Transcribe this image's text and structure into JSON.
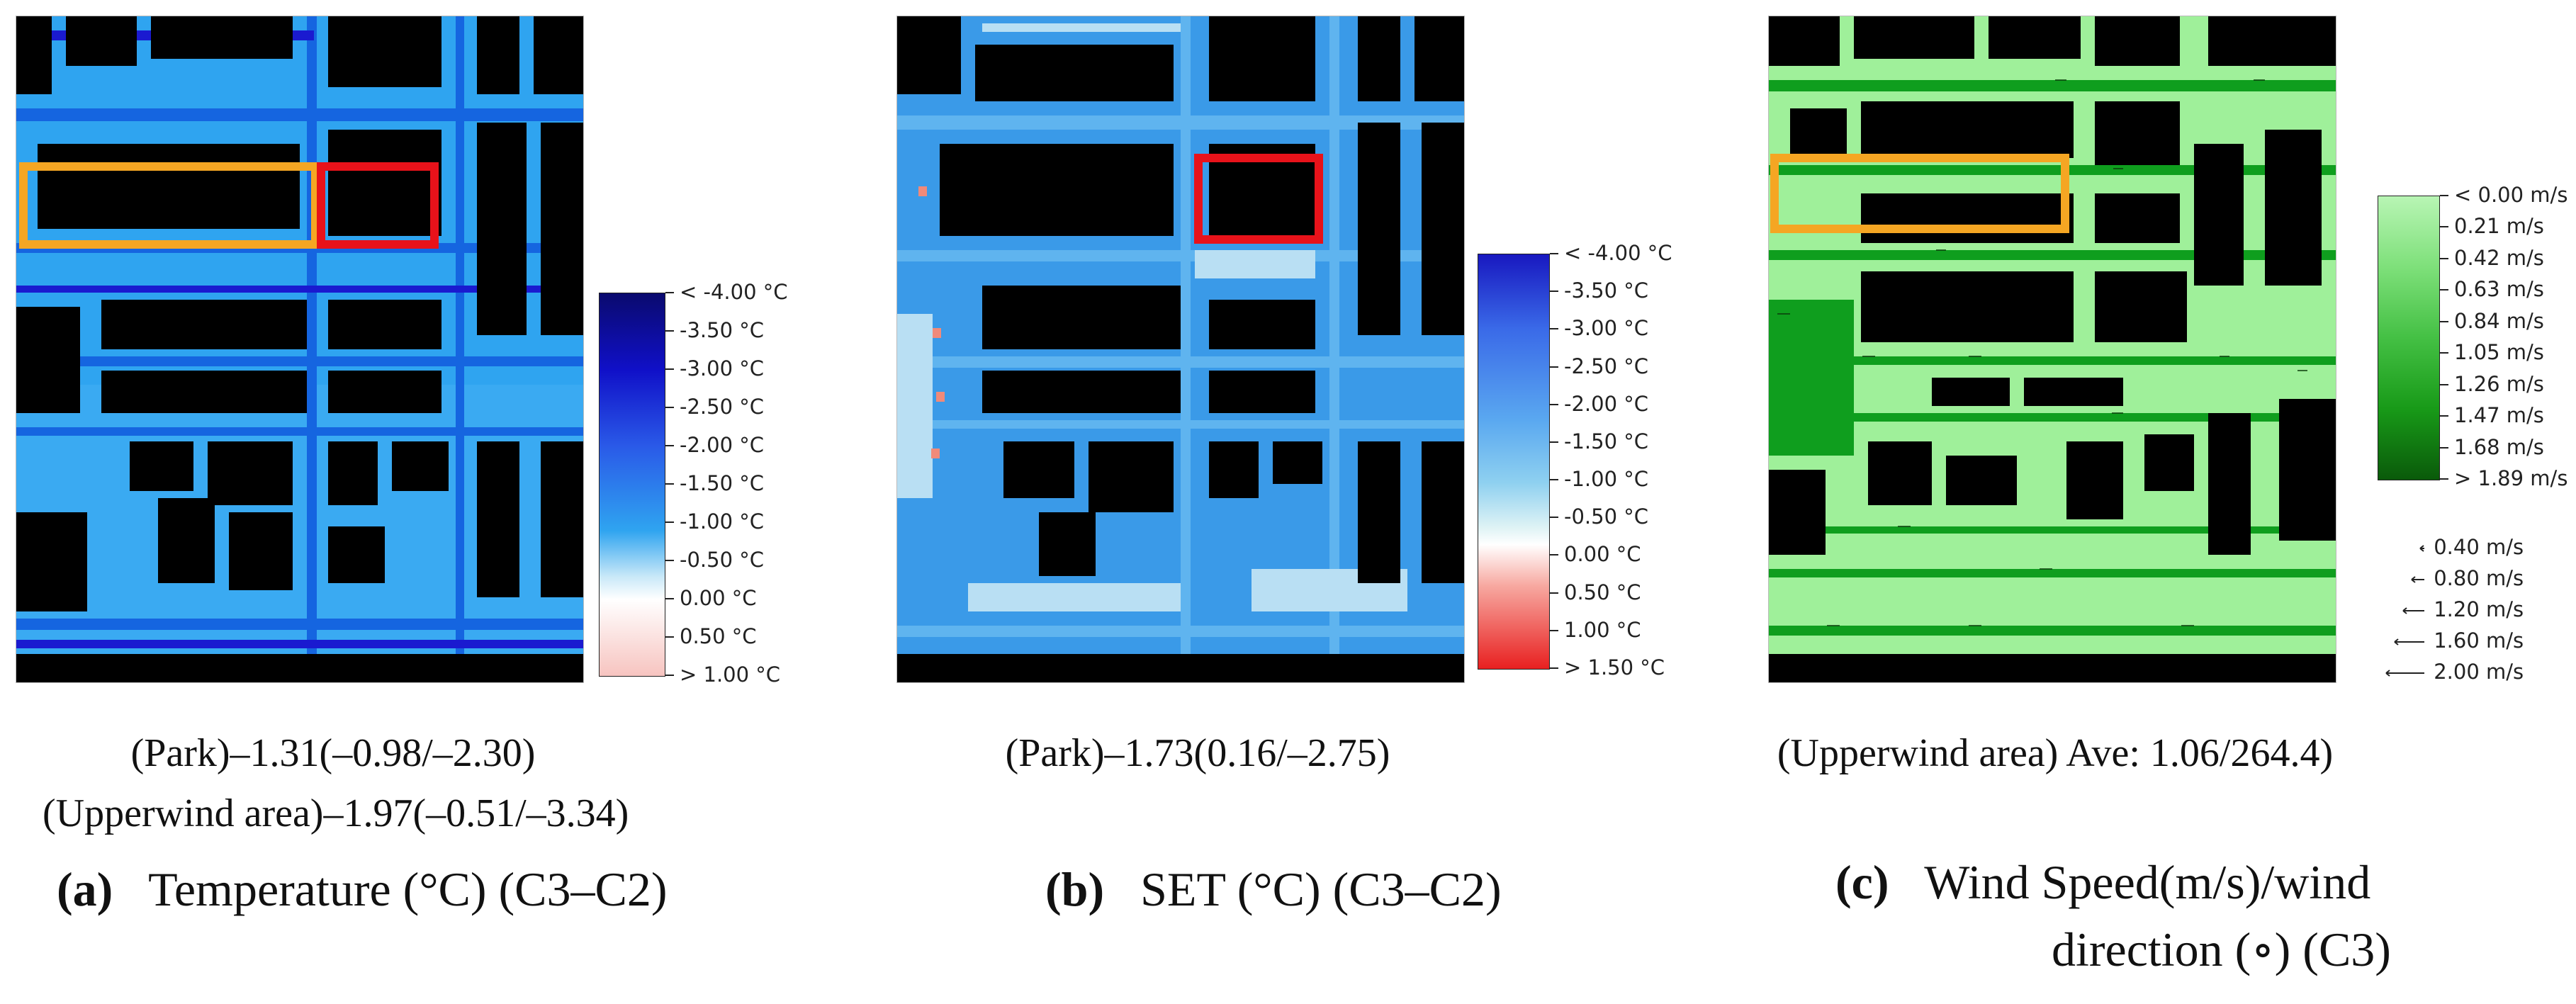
{
  "panels": [
    {
      "id": "a",
      "letter": "(a)",
      "title_text": "Temperature (°C) (C3–C2)",
      "caption_lines": [
        "(Park)–1.31(–0.98/–2.30)",
        "(Upperwind area)–1.97(–0.51/–3.34)"
      ],
      "legend": [
        "< -4.00 °C",
        "-3.50 °C",
        "-3.00 °C",
        "-2.50 °C",
        "-2.00 °C",
        "-1.50 °C",
        "-1.00 °C",
        "-0.50 °C",
        "0.00 °C",
        "0.50 °C",
        "> 1.00 °C"
      ],
      "colors": {
        "background": "#2fa4f0",
        "street": "#1565e0",
        "cool_street": "#1a1ad0",
        "building": "#000000",
        "park": "#3aaaf2"
      },
      "highlights": [
        {
          "color": "#f5a623"
        },
        {
          "color": "#e8121a"
        }
      ]
    },
    {
      "id": "b",
      "letter": "(b)",
      "title_text": "SET (°C) (C3–C2)",
      "caption_lines": [
        "(Park)–1.73(0.16/–2.75)"
      ],
      "legend": [
        "< -4.00 °C",
        "-3.50 °C",
        "-3.00 °C",
        "-2.50 °C",
        "-2.00 °C",
        "-1.50 °C",
        "-1.00 °C",
        "-0.50 °C",
        "0.00 °C",
        "0.50 °C",
        "1.00 °C",
        "> 1.50 °C"
      ],
      "colors": {
        "background": "#3a9ae8",
        "street": "#5fb4ef",
        "light": "#b9dff3",
        "building": "#000000",
        "hot": "#f08a7a"
      },
      "highlights": [
        {
          "color": "#e8121a"
        }
      ]
    },
    {
      "id": "c",
      "letter": "(c)",
      "title_text": "Wind Speed(m/s)/wind",
      "title_line2": "direction (∘) (C3)",
      "caption_lines": [
        "(Upperwind area) Ave: 1.06/264.4)"
      ],
      "legend": [
        "< 0.00 m/s",
        "0.21 m/s",
        "0.42 m/s",
        "0.63 m/s",
        "0.84 m/s",
        "1.05 m/s",
        "1.26 m/s",
        "1.47 m/s",
        "1.68 m/s",
        "> 1.89 m/s"
      ],
      "vectors": [
        "0.40 m/s",
        "0.80 m/s",
        "1.20 m/s",
        "1.60 m/s",
        "2.00 m/s"
      ],
      "colors": {
        "background": "#9ff09a",
        "street": "#0f9e1e",
        "building": "#000000"
      },
      "highlights": [
        {
          "color": "#f5a623"
        }
      ]
    }
  ]
}
